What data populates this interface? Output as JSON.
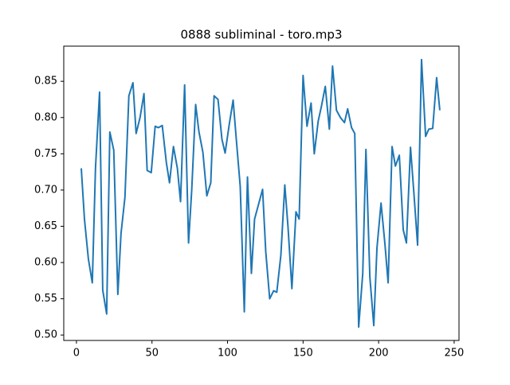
{
  "chart_data": {
    "type": "line",
    "title": "0888 subliminal - toro.mp3",
    "x": [
      3.2,
      5.3,
      7.9,
      10.5,
      12.6,
      15.3,
      17.4,
      20,
      22.1,
      24.7,
      27.4,
      29.5,
      32.1,
      34.7,
      37.4,
      39.5,
      42.1,
      44.7,
      46.8,
      49.5,
      52.1,
      54.2,
      56.8,
      59.5,
      61.6,
      64.2,
      66.8,
      68.9,
      71.6,
      74.2,
      76.3,
      78.9,
      81.1,
      83.7,
      86.3,
      88.9,
      91.1,
      93.7,
      96.3,
      98.4,
      101.1,
      103.7,
      105.8,
      108.4,
      111.1,
      113.2,
      115.8,
      117.9,
      120.5,
      123.2,
      125.3,
      127.9,
      130.5,
      132.6,
      135.3,
      137.9,
      140,
      142.6,
      145.3,
      147.4,
      150,
      152.6,
      155.3,
      157.4,
      160,
      162.1,
      164.7,
      167.4,
      169.5,
      172.1,
      174.7,
      177.4,
      179.5,
      182.1,
      184.2,
      186.8,
      189.5,
      191.6,
      194.2,
      196.8,
      198.9,
      201.6,
      204.2,
      206.3,
      208.9,
      211.1,
      213.7,
      216.3,
      218.4,
      221.1,
      223.2,
      225.8,
      228.4,
      231.1,
      233.2,
      235.8,
      238.4,
      240.5
    ],
    "series": [
      {
        "color": "#1f77b4",
        "values": [
          0.73,
          0.66,
          0.605,
          0.572,
          0.73,
          0.835,
          0.562,
          0.529,
          0.78,
          0.755,
          0.556,
          0.64,
          0.69,
          0.83,
          0.848,
          0.778,
          0.8,
          0.833,
          0.727,
          0.724,
          0.788,
          0.786,
          0.789,
          0.738,
          0.71,
          0.76,
          0.73,
          0.684,
          0.845,
          0.627,
          0.7,
          0.818,
          0.78,
          0.752,
          0.692,
          0.71,
          0.83,
          0.825,
          0.77,
          0.751,
          0.79,
          0.824,
          0.77,
          0.705,
          0.532,
          0.718,
          0.585,
          0.66,
          0.68,
          0.701,
          0.615,
          0.55,
          0.561,
          0.559,
          0.61,
          0.707,
          0.65,
          0.564,
          0.67,
          0.66,
          0.858,
          0.788,
          0.82,
          0.75,
          0.795,
          0.815,
          0.843,
          0.784,
          0.871,
          0.81,
          0.8,
          0.793,
          0.812,
          0.786,
          0.778,
          0.511,
          0.585,
          0.756,
          0.58,
          0.513,
          0.62,
          0.682,
          0.625,
          0.572,
          0.76,
          0.733,
          0.748,
          0.645,
          0.627,
          0.759,
          0.7,
          0.624,
          0.88,
          0.774,
          0.784,
          0.785,
          0.855,
          0.81
        ]
      }
    ],
    "xlim": [
      -8.4,
      253.2
    ],
    "ylim": [
      0.4925,
      0.8985
    ],
    "xticks": [
      0,
      50,
      100,
      150,
      200,
      250
    ],
    "yticks": [
      {
        "value": 0.5,
        "label": "0.50"
      },
      0.55,
      {
        "value": 0.6,
        "label": "0.60"
      },
      0.65,
      {
        "value": 0.7,
        "label": "0.70"
      },
      0.75,
      {
        "value": 0.8,
        "label": "0.80"
      },
      0.85
    ]
  }
}
